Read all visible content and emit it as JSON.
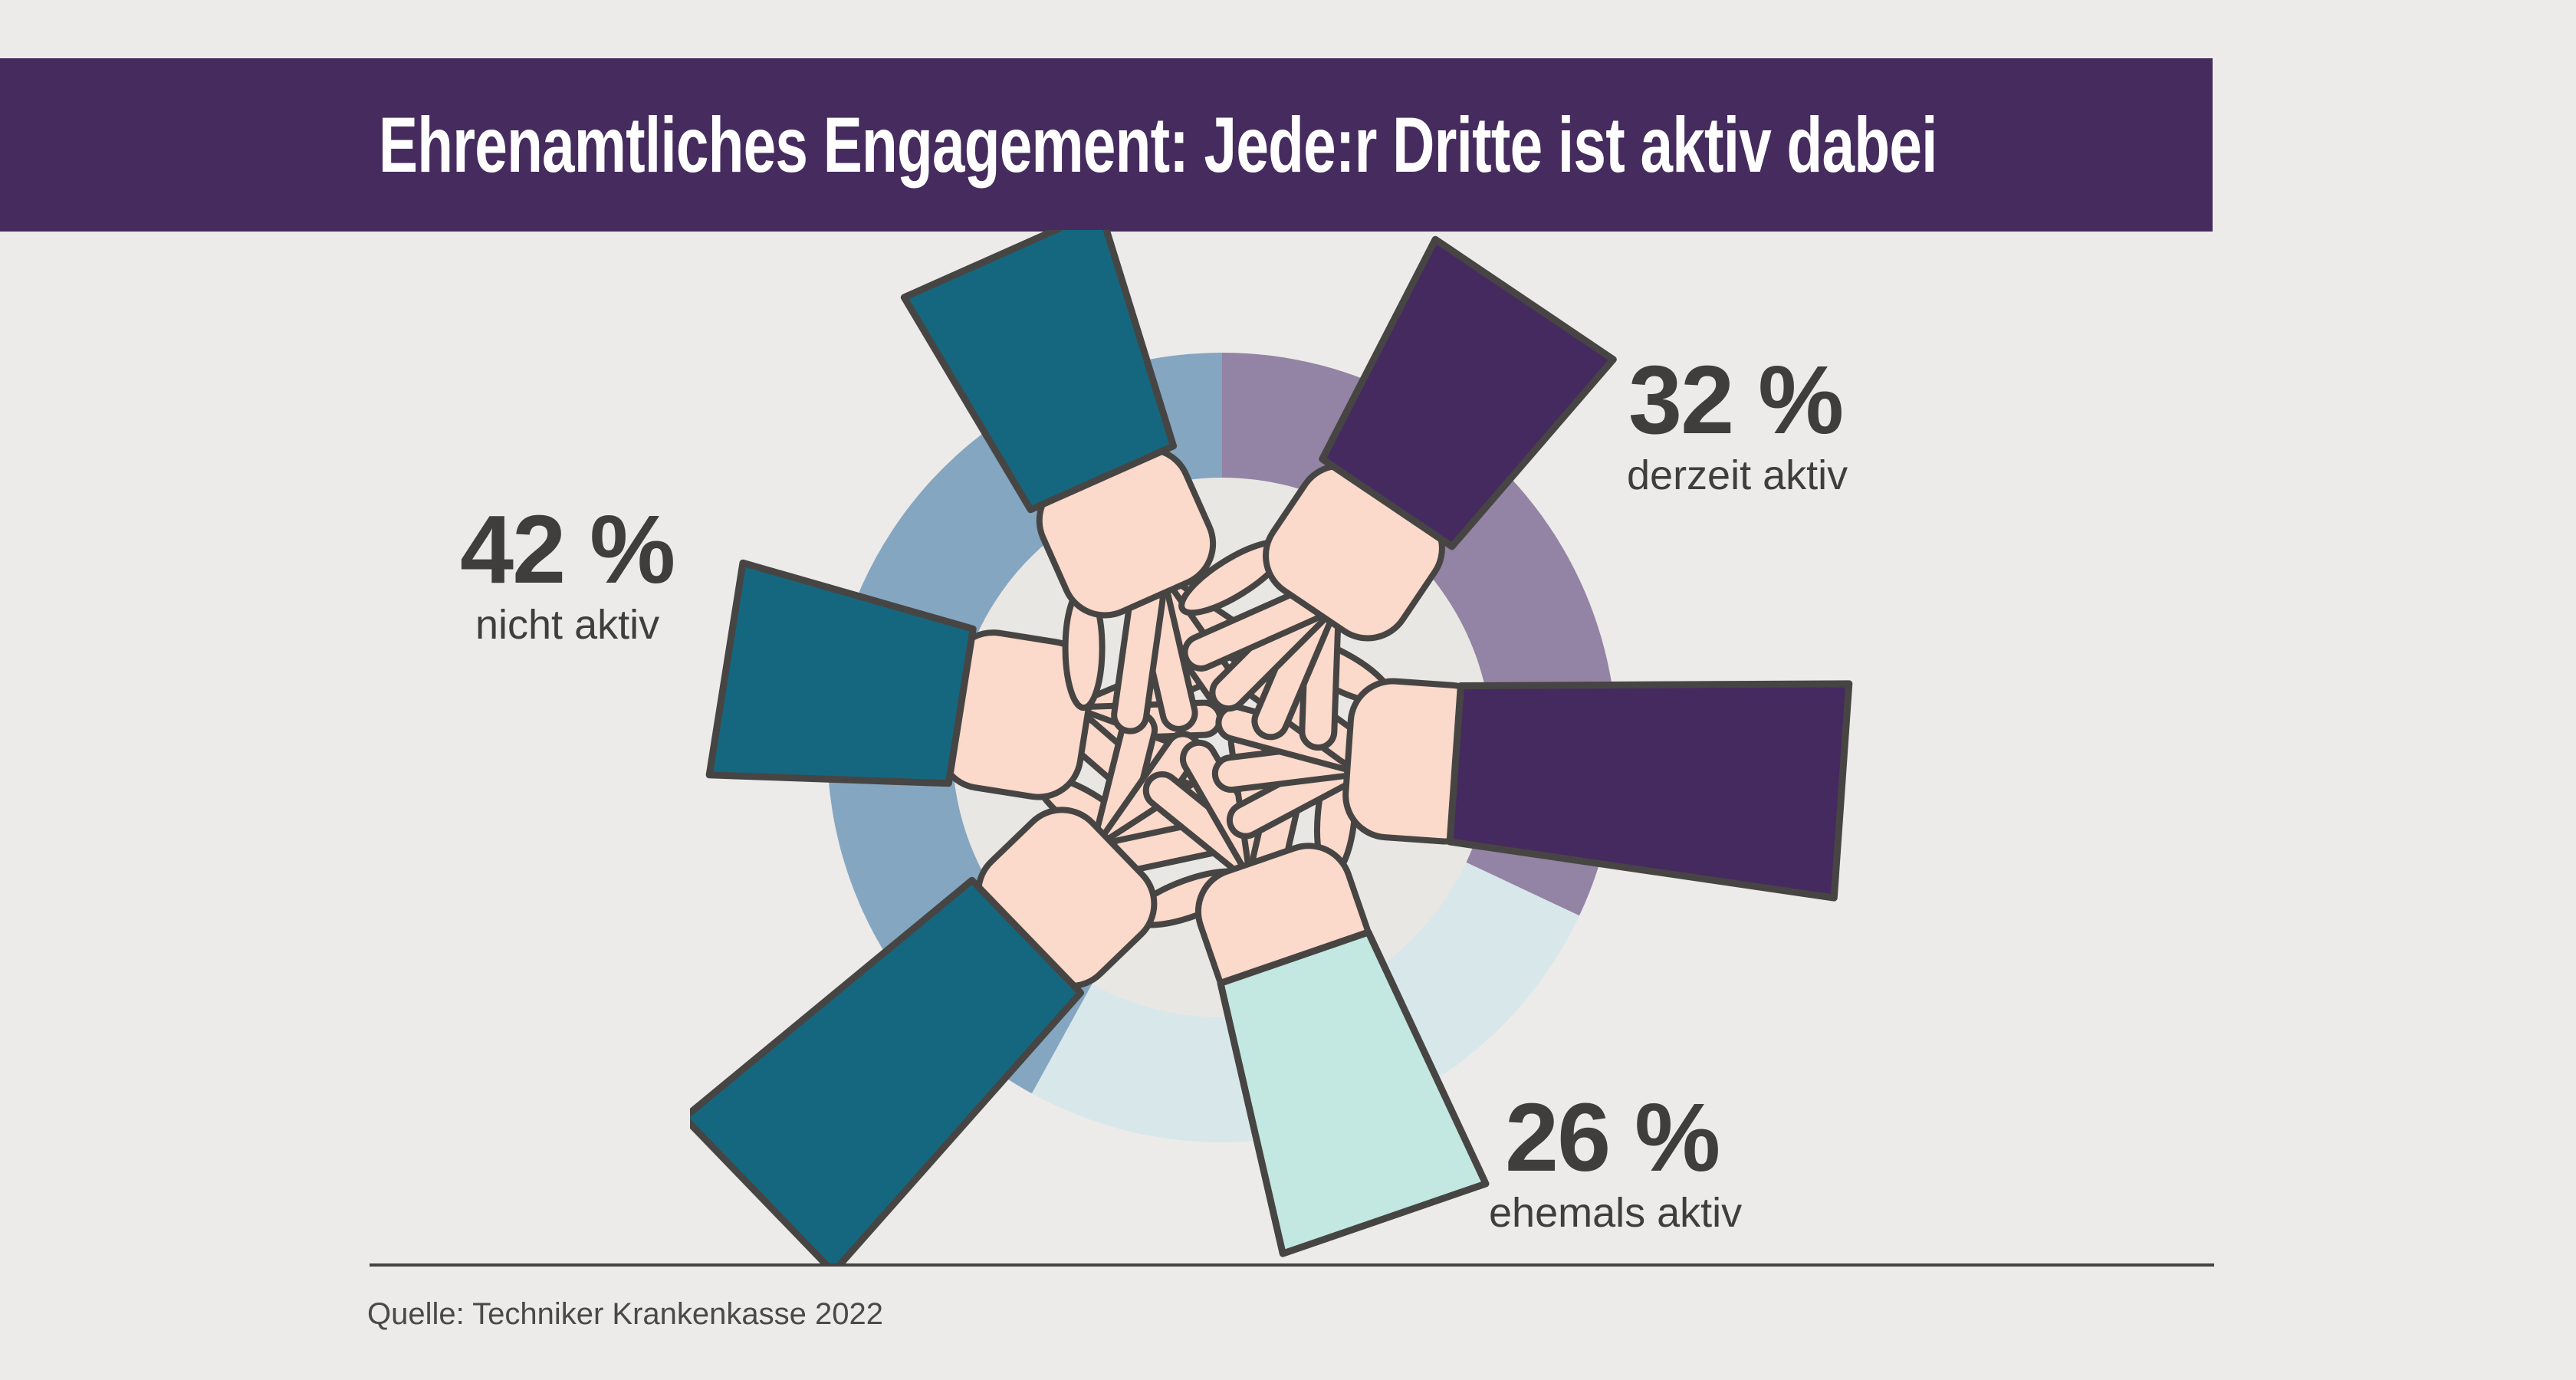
{
  "header": {
    "title": "Ehrenamtliches Engagement: Jede:r Dritte ist aktiv dabei",
    "background": "#462c5e",
    "text_color": "#ffffff"
  },
  "chart_data": {
    "type": "pie",
    "variant": "donut",
    "title": "Ehrenamtliches Engagement: Jede:r Dritte ist aktiv dabei",
    "unit": "%",
    "start_angle_deg": 0,
    "direction": "clockwise",
    "segments": [
      {
        "label": "derzeit aktiv",
        "value": 32,
        "color": "#9383a4"
      },
      {
        "label": "ehemals aktiv",
        "value": 26,
        "color": "#d8e7ea"
      },
      {
        "label": "nicht aktiv",
        "value": 42,
        "color": "#85a6c1"
      }
    ],
    "legend_position": "around-donut",
    "center_illustration": "six hands stacked together in a teamwork gesture"
  },
  "stats": [
    {
      "value": "42 %",
      "label": "nicht aktiv"
    },
    {
      "value": "32 %",
      "label": "derzeit aktiv"
    },
    {
      "value": "26 %",
      "label": "ehemals aktiv"
    }
  ],
  "footer": {
    "source": "Quelle: Techniker Krankenkasse 2022"
  },
  "illustration": {
    "skin_color": "#fbd9cb",
    "outline_color": "#474543",
    "inner_disc_color": "#e9e7e4",
    "arms": [
      {
        "name": "left-teal",
        "sleeve_color": "#15677f",
        "angle": 279,
        "wrist_r": 345,
        "outer_r": 655,
        "shift": 35
      },
      {
        "name": "bottom-left-teal",
        "sleeve_color": "#15677f",
        "angle": 226,
        "wrist_r": 355,
        "outer_r": 840,
        "shift": 25
      },
      {
        "name": "top-left-teal",
        "sleeve_color": "#15677f",
        "angle": 336,
        "wrist_r": 385,
        "outer_r": 705,
        "shift": 0
      },
      {
        "name": "bottom-mint",
        "sleeve_color": "#c3e7e1",
        "angle": 161,
        "wrist_r": 290,
        "outer_r": 650,
        "shift": 60
      },
      {
        "name": "right-purple",
        "sleeve_color": "#452a60",
        "angle": 94,
        "wrist_r": 305,
        "outer_r": 810,
        "shift": 50
      },
      {
        "name": "top-right-purple",
        "sleeve_color": "#452a60",
        "angle": 34,
        "wrist_r": 385,
        "outer_r": 705,
        "shift": 0
      }
    ]
  },
  "colors": {
    "page_background": "#ecebe9",
    "text_dark": "#403e3d",
    "divider": "#454442"
  }
}
